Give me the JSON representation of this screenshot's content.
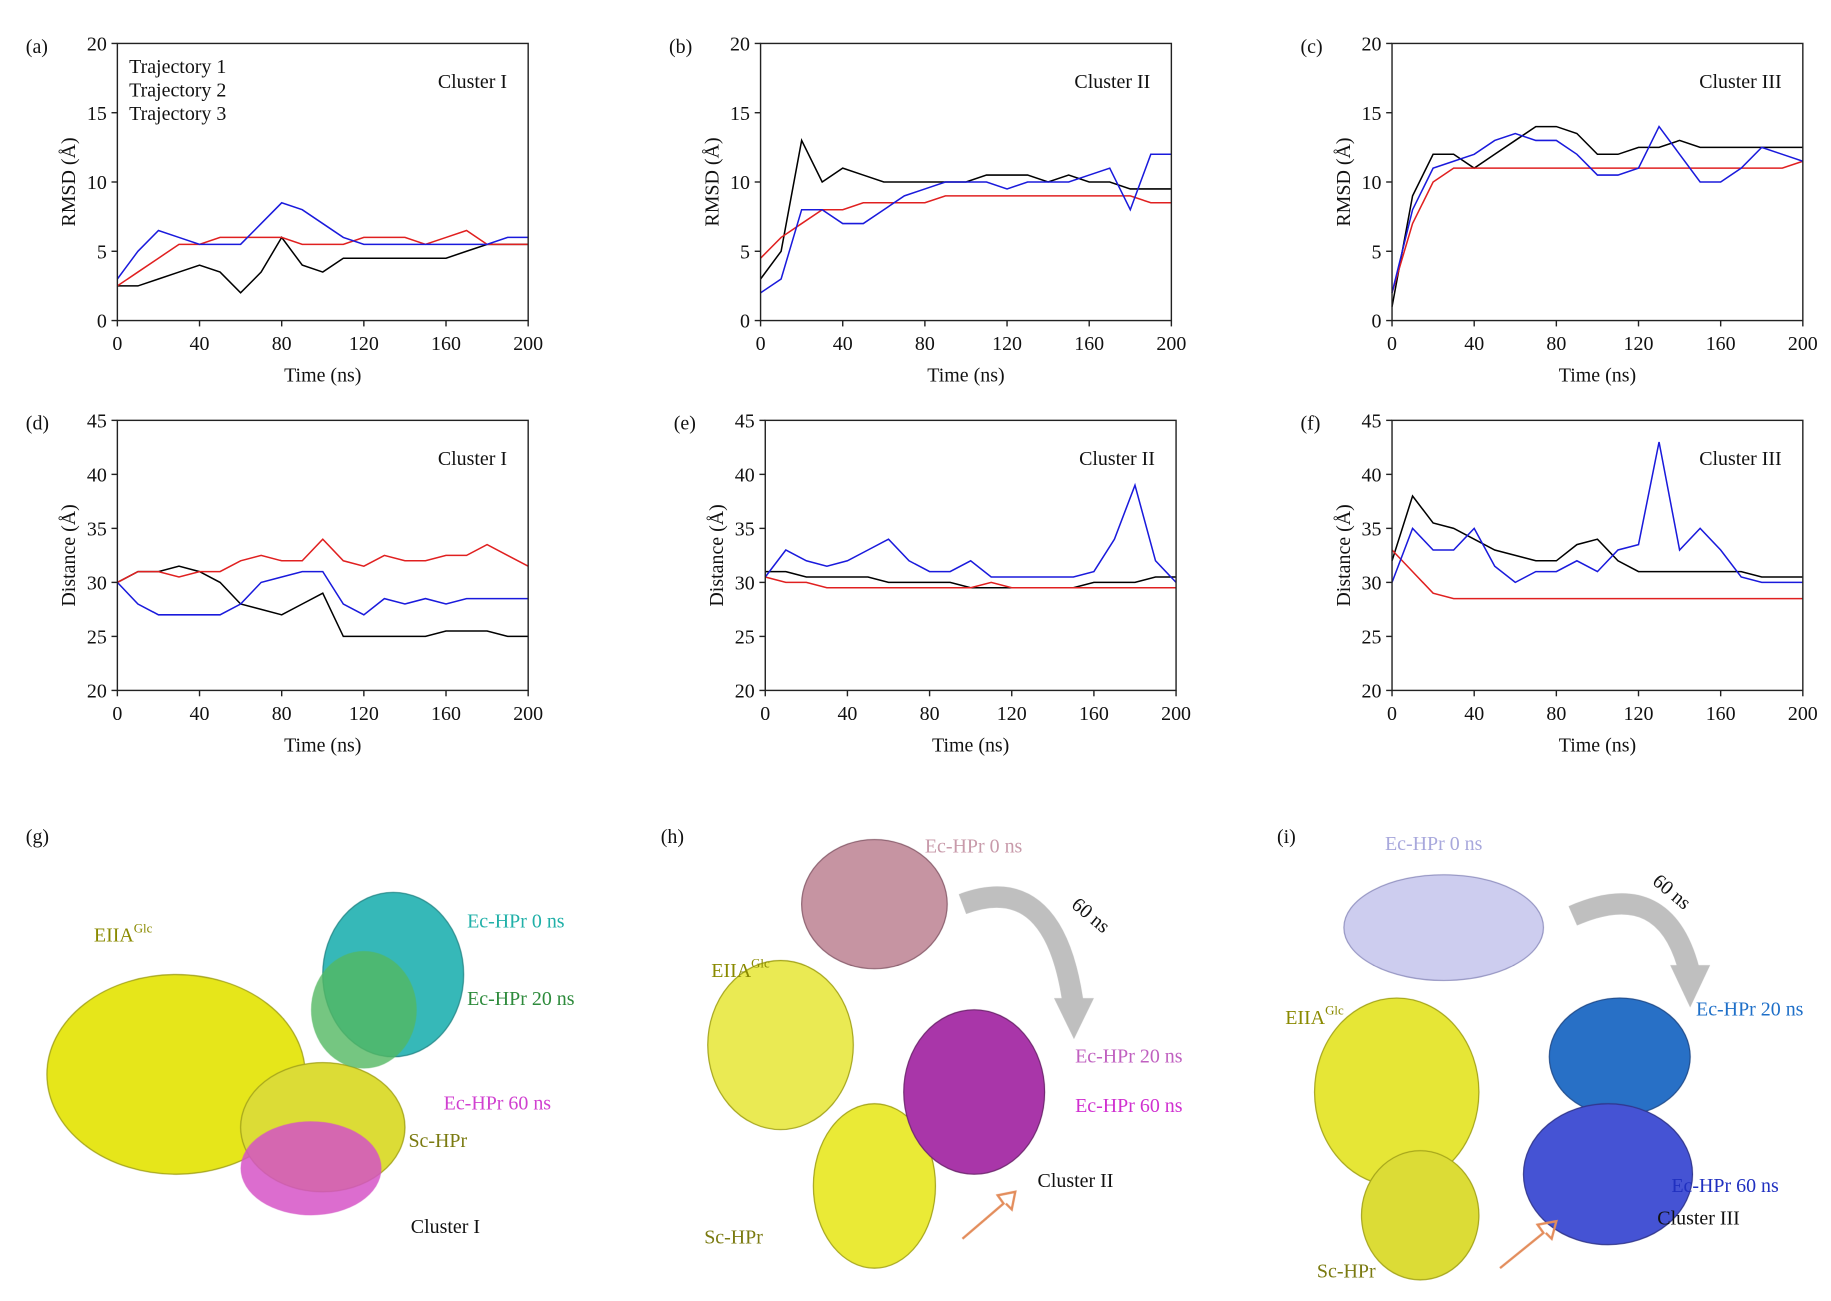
{
  "chart_data": [
    {
      "type": "line",
      "panel_label": "(a)",
      "annotation": "Cluster I",
      "xlabel": "Time (ns)",
      "ylabel": "RMSD (Å)",
      "legend": "upper left",
      "x": [
        0,
        10,
        20,
        30,
        40,
        50,
        60,
        70,
        80,
        90,
        100,
        110,
        120,
        130,
        140,
        150,
        160,
        170,
        180,
        190,
        200
      ],
      "xlim": [
        0,
        200
      ],
      "xticks": [
        0,
        40,
        80,
        120,
        160,
        200
      ],
      "ylim": [
        0,
        20
      ],
      "yticks": [
        0,
        5,
        10,
        15,
        20
      ],
      "series": [
        {
          "name": "Trajectory 1",
          "color": "#000000",
          "values": [
            2.5,
            2.5,
            3,
            3.5,
            4,
            3.5,
            2,
            3.5,
            6,
            4,
            3.5,
            4.5,
            4.5,
            4.5,
            4.5,
            4.5,
            4.5,
            5,
            5.5,
            5.5,
            5.5
          ]
        },
        {
          "name": "Trajectory 2",
          "color": "#e02020",
          "values": [
            2.5,
            3.5,
            4.5,
            5.5,
            5.5,
            6,
            6,
            6,
            6,
            5.5,
            5.5,
            5.5,
            6,
            6,
            6,
            5.5,
            6,
            6.5,
            5.5,
            5.5,
            5.5
          ]
        },
        {
          "name": "Trajectory 3",
          "color": "#1a1adc",
          "values": [
            3,
            5,
            6.5,
            6,
            5.5,
            5.5,
            5.5,
            7,
            8.5,
            8,
            7,
            6,
            5.5,
            5.5,
            5.5,
            5.5,
            5.5,
            5.5,
            5.5,
            6,
            6
          ]
        }
      ]
    },
    {
      "type": "line",
      "panel_label": "(b)",
      "annotation": "Cluster II",
      "xlabel": "Time (ns)",
      "ylabel": "RMSD (Å)",
      "x": [
        0,
        10,
        20,
        30,
        40,
        50,
        60,
        70,
        80,
        90,
        100,
        110,
        120,
        130,
        140,
        150,
        160,
        170,
        180,
        190,
        200
      ],
      "xlim": [
        0,
        200
      ],
      "xticks": [
        0,
        40,
        80,
        120,
        160,
        200
      ],
      "ylim": [
        0,
        20
      ],
      "yticks": [
        0,
        5,
        10,
        15,
        20
      ],
      "series": [
        {
          "color": "#000000",
          "values": [
            3,
            5,
            13,
            10,
            11,
            10.5,
            10,
            10,
            10,
            10,
            10,
            10.5,
            10.5,
            10.5,
            10,
            10.5,
            10,
            10,
            9.5,
            9.5,
            9.5
          ]
        },
        {
          "color": "#e02020",
          "values": [
            4.5,
            6,
            7,
            8,
            8,
            8.5,
            8.5,
            8.5,
            8.5,
            9,
            9,
            9,
            9,
            9,
            9,
            9,
            9,
            9,
            9,
            8.5,
            8.5
          ]
        },
        {
          "color": "#1a1adc",
          "values": [
            2,
            3,
            8,
            8,
            7,
            7,
            8,
            9,
            9.5,
            10,
            10,
            10,
            9.5,
            10,
            10,
            10,
            10.5,
            11,
            8,
            12,
            12
          ]
        }
      ]
    },
    {
      "type": "line",
      "panel_label": "(c)",
      "annotation": "Cluster III",
      "xlabel": "Time (ns)",
      "ylabel": "RMSD (Å)",
      "x": [
        0,
        10,
        20,
        30,
        40,
        50,
        60,
        70,
        80,
        90,
        100,
        110,
        120,
        130,
        140,
        150,
        160,
        170,
        180,
        190,
        200
      ],
      "xlim": [
        0,
        200
      ],
      "xticks": [
        0,
        40,
        80,
        120,
        160,
        200
      ],
      "ylim": [
        0,
        20
      ],
      "yticks": [
        0,
        5,
        10,
        15,
        20
      ],
      "series": [
        {
          "color": "#000000",
          "values": [
            1,
            9,
            12,
            12,
            11,
            12,
            13,
            14,
            14,
            13.5,
            12,
            12,
            12.5,
            12.5,
            13,
            12.5,
            12.5,
            12.5,
            12.5,
            12.5,
            12.5
          ]
        },
        {
          "color": "#e02020",
          "values": [
            2,
            7,
            10,
            11,
            11,
            11,
            11,
            11,
            11,
            11,
            11,
            11,
            11,
            11,
            11,
            11,
            11,
            11,
            11,
            11,
            11.5
          ]
        },
        {
          "color": "#1a1adc",
          "values": [
            2,
            8,
            11,
            11.5,
            12,
            13,
            13.5,
            13,
            13,
            12,
            10.5,
            10.5,
            11,
            14,
            12,
            10,
            10,
            11,
            12.5,
            12,
            11.5
          ]
        }
      ]
    },
    {
      "type": "line",
      "panel_label": "(d)",
      "annotation": "Cluster I",
      "xlabel": "Time (ns)",
      "ylabel": "Distance (Å)",
      "x": [
        0,
        10,
        20,
        30,
        40,
        50,
        60,
        70,
        80,
        90,
        100,
        110,
        120,
        130,
        140,
        150,
        160,
        170,
        180,
        190,
        200
      ],
      "xlim": [
        0,
        200
      ],
      "xticks": [
        0,
        40,
        80,
        120,
        160,
        200
      ],
      "ylim": [
        20,
        45
      ],
      "yticks": [
        20,
        25,
        30,
        35,
        40,
        45
      ],
      "series": [
        {
          "color": "#000000",
          "values": [
            30,
            31,
            31,
            31.5,
            31,
            30,
            28,
            27.5,
            27,
            28,
            29,
            25,
            25,
            25,
            25,
            25,
            25.5,
            25.5,
            25.5,
            25,
            25
          ]
        },
        {
          "color": "#e02020",
          "values": [
            30,
            31,
            31,
            30.5,
            31,
            31,
            32,
            32.5,
            32,
            32,
            34,
            32,
            31.5,
            32.5,
            32,
            32,
            32.5,
            32.5,
            33.5,
            32.5,
            31.5
          ]
        },
        {
          "color": "#1a1adc",
          "values": [
            30,
            28,
            27,
            27,
            27,
            27,
            28,
            30,
            30.5,
            31,
            31,
            28,
            27,
            28.5,
            28,
            28.5,
            28,
            28.5,
            28.5,
            28.5,
            28.5
          ]
        }
      ]
    },
    {
      "type": "line",
      "panel_label": "(e)",
      "annotation": "Cluster II",
      "xlabel": "Time (ns)",
      "ylabel": "Distance (Å)",
      "x": [
        0,
        10,
        20,
        30,
        40,
        50,
        60,
        70,
        80,
        90,
        100,
        110,
        120,
        130,
        140,
        150,
        160,
        170,
        180,
        190,
        200
      ],
      "xlim": [
        0,
        200
      ],
      "xticks": [
        0,
        40,
        80,
        120,
        160,
        200
      ],
      "ylim": [
        20,
        45
      ],
      "yticks": [
        20,
        25,
        30,
        35,
        40,
        45
      ],
      "series": [
        {
          "color": "#000000",
          "values": [
            31,
            31,
            30.5,
            30.5,
            30.5,
            30.5,
            30,
            30,
            30,
            30,
            29.5,
            29.5,
            29.5,
            29.5,
            29.5,
            29.5,
            30,
            30,
            30,
            30.5,
            30.5
          ]
        },
        {
          "color": "#e02020",
          "values": [
            30.5,
            30,
            30,
            29.5,
            29.5,
            29.5,
            29.5,
            29.5,
            29.5,
            29.5,
            29.5,
            30,
            29.5,
            29.5,
            29.5,
            29.5,
            29.5,
            29.5,
            29.5,
            29.5,
            29.5
          ]
        },
        {
          "color": "#1a1adc",
          "values": [
            30.5,
            33,
            32,
            31.5,
            32,
            33,
            34,
            32,
            31,
            31,
            32,
            30.5,
            30.5,
            30.5,
            30.5,
            30.5,
            31,
            34,
            39,
            32,
            30
          ]
        }
      ]
    },
    {
      "type": "line",
      "panel_label": "(f)",
      "annotation": "Cluster III",
      "xlabel": "Time (ns)",
      "ylabel": "Distance (Å)",
      "x": [
        0,
        10,
        20,
        30,
        40,
        50,
        60,
        70,
        80,
        90,
        100,
        110,
        120,
        130,
        140,
        150,
        160,
        170,
        180,
        190,
        200
      ],
      "xlim": [
        0,
        200
      ],
      "xticks": [
        0,
        40,
        80,
        120,
        160,
        200
      ],
      "ylim": [
        20,
        45
      ],
      "yticks": [
        20,
        25,
        30,
        35,
        40,
        45
      ],
      "series": [
        {
          "color": "#000000",
          "values": [
            32,
            38,
            35.5,
            35,
            34,
            33,
            32.5,
            32,
            32,
            33.5,
            34,
            32,
            31,
            31,
            31,
            31,
            31,
            31,
            30.5,
            30.5,
            30.5
          ]
        },
        {
          "color": "#e02020",
          "values": [
            33,
            31,
            29,
            28.5,
            28.5,
            28.5,
            28.5,
            28.5,
            28.5,
            28.5,
            28.5,
            28.5,
            28.5,
            28.5,
            28.5,
            28.5,
            28.5,
            28.5,
            28.5,
            28.5,
            28.5
          ]
        },
        {
          "color": "#1a1adc",
          "values": [
            30,
            35,
            33,
            33,
            35,
            31.5,
            30,
            31,
            31,
            32,
            31,
            33,
            33.5,
            43,
            33,
            35,
            33,
            30.5,
            30,
            30,
            30
          ]
        }
      ]
    }
  ],
  "structures": [
    {
      "panel_label": "(g)",
      "labels": [
        {
          "text": "EIIA",
          "sup": "Glc",
          "color": "#8a8a00"
        },
        {
          "text": "Ec-HPr 0 ns",
          "color": "#20b0a8"
        },
        {
          "text": "Ec-HPr 20 ns",
          "color": "#2e8b3c"
        },
        {
          "text": "Ec-HPr 60 ns",
          "color": "#d040d0"
        },
        {
          "text": "Sc-HPr",
          "color": "#7a7a10"
        },
        {
          "text": "Cluster I",
          "color": "#111111"
        }
      ]
    },
    {
      "panel_label": "(h)",
      "labels": [
        {
          "text": "Ec-HPr 0 ns",
          "color": "#c89aaa"
        },
        {
          "text": "60 ns",
          "color": "#111111"
        },
        {
          "text": "EIIA",
          "sup": "Glc",
          "color": "#8a8a00"
        },
        {
          "text": "Ec-HPr 20 ns",
          "color": "#c060c0"
        },
        {
          "text": "Ec-HPr 60 ns",
          "color": "#d030d0"
        },
        {
          "text": "Cluster II",
          "color": "#111111"
        },
        {
          "text": "Sc-HPr",
          "color": "#7a7a10"
        }
      ]
    },
    {
      "panel_label": "(i)",
      "labels": [
        {
          "text": "Ec-HPr 0 ns",
          "color": "#a8a8dc"
        },
        {
          "text": "60 ns",
          "color": "#111111"
        },
        {
          "text": "EIIA",
          "sup": "Glc",
          "color": "#8a8a00"
        },
        {
          "text": "Ec-HPr 20 ns",
          "color": "#1e6fc8"
        },
        {
          "text": "Ec-HPr 60 ns",
          "color": "#2030c0"
        },
        {
          "text": "Cluster III",
          "color": "#111111"
        },
        {
          "text": "Sc-HPr",
          "color": "#7a7a10"
        }
      ]
    }
  ]
}
